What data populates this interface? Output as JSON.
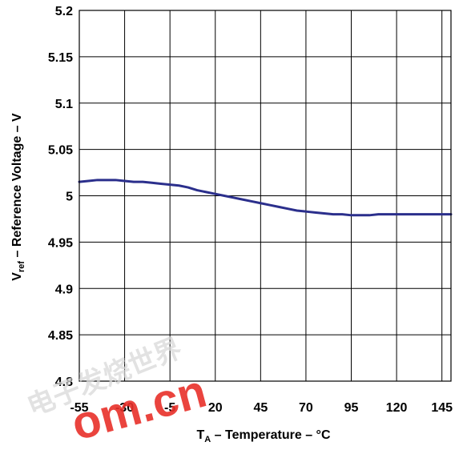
{
  "chart_data": {
    "type": "line",
    "title": "",
    "xlabel": {
      "main": "T",
      "sub": "A",
      "rest": " – Temperature – °C"
    },
    "ylabel": {
      "main": "V",
      "sub": "ref",
      "rest": " – Reference Voltage – V"
    },
    "xlim": [
      -55,
      150
    ],
    "ylim": [
      4.8,
      5.2
    ],
    "x_ticks": [
      -55,
      -30,
      -5,
      20,
      45,
      70,
      95,
      120,
      145
    ],
    "x_tick_labels": [
      "-55",
      "-30",
      "-5",
      "20",
      "45",
      "70",
      "95",
      "120",
      "145"
    ],
    "y_ticks": [
      4.8,
      4.85,
      4.9,
      4.95,
      5.0,
      5.05,
      5.1,
      5.15,
      5.2
    ],
    "y_tick_labels": [
      "4.8",
      "4.85",
      "4.9",
      "4.95",
      "5",
      "5.05",
      "5.1",
      "5.15",
      "5.2"
    ],
    "grid": true,
    "series": [
      {
        "color": "#2b2f8c",
        "x": [
          -55,
          -50,
          -45,
          -40,
          -35,
          -30,
          -25,
          -20,
          -15,
          -10,
          -5,
          0,
          5,
          10,
          15,
          20,
          25,
          30,
          35,
          40,
          45,
          50,
          55,
          60,
          65,
          70,
          75,
          80,
          85,
          90,
          95,
          100,
          105,
          110,
          115,
          120,
          125,
          130,
          135,
          140,
          145,
          150
        ],
        "y": [
          5.015,
          5.016,
          5.017,
          5.017,
          5.017,
          5.016,
          5.015,
          5.015,
          5.014,
          5.013,
          5.012,
          5.011,
          5.009,
          5.006,
          5.004,
          5.002,
          5.0,
          4.998,
          4.996,
          4.994,
          4.992,
          4.99,
          4.988,
          4.986,
          4.984,
          4.983,
          4.982,
          4.981,
          4.98,
          4.98,
          4.979,
          4.979,
          4.979,
          4.98,
          4.98,
          4.98,
          4.98,
          4.98,
          4.98,
          4.98,
          4.98,
          4.98
        ]
      }
    ]
  },
  "watermark": {
    "text_latin": "om.cn",
    "text_cjk": "电子发烧世界"
  }
}
